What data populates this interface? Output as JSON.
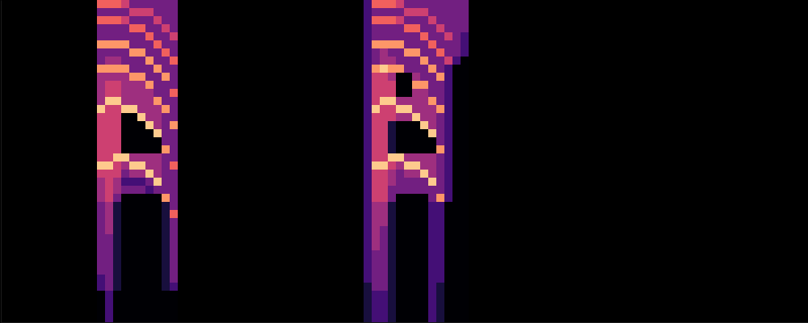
{
  "chart_data": {
    "type": "heatmap",
    "x": [
      12,
      13,
      14,
      15,
      16,
      17,
      18,
      19,
      20,
      21,
      45,
      46,
      47,
      48,
      49,
      50,
      51,
      52,
      53,
      54,
      55,
      56,
      57
    ],
    "y": [
      39,
      38,
      37,
      36,
      35,
      34,
      33,
      32,
      31,
      30,
      29,
      28,
      27,
      26,
      25,
      24,
      23,
      22,
      21,
      20,
      19,
      18,
      17,
      16,
      15,
      14,
      13,
      12,
      11,
      10,
      9,
      8,
      7,
      6,
      5,
      4,
      3,
      2,
      1,
      0
    ],
    "z": [
      [
        6,
        3,
        6,
        3,
        3,
        7,
        3,
        3,
        7,
        4,
        4,
        4,
        4,
        8,
        5,
        5,
        5,
        5,
        5,
        5,
        8,
        5,
        4,
        4,
        4,
        3,
        3,
        3,
        3,
        3,
        3,
        3,
        3,
        3,
        2,
        2,
        0,
        0,
        0,
        0
      ],
      [
        6,
        3,
        6,
        3,
        3,
        7,
        3,
        4,
        7,
        4,
        5,
        5,
        8,
        5,
        5,
        5,
        5,
        5,
        5,
        5,
        8,
        5,
        5,
        5,
        5,
        4,
        4,
        4,
        4,
        3,
        3,
        3,
        3,
        3,
        3,
        3,
        2,
        2,
        2,
        2
      ],
      [
        6,
        3,
        6,
        3,
        3,
        7,
        3,
        4,
        7,
        4,
        5,
        5,
        8,
        5,
        5,
        5,
        5,
        5,
        5,
        8,
        5,
        5,
        4,
        4,
        3,
        1,
        1,
        1,
        1,
        1,
        1,
        1,
        1,
        1,
        1,
        1,
        0,
        0,
        0,
        0
      ],
      [
        5,
        3,
        5,
        3,
        3,
        7,
        3,
        3,
        7,
        4,
        4,
        4,
        4,
        8,
        0,
        0,
        0,
        0,
        0,
        8,
        4,
        3,
        2,
        3,
        0,
        0,
        0,
        0,
        0,
        0,
        0,
        0,
        0,
        0,
        0,
        0,
        0,
        0,
        0,
        0
      ],
      [
        3,
        5,
        3,
        6,
        3,
        3,
        7,
        3,
        3,
        7,
        4,
        4,
        4,
        8,
        0,
        0,
        0,
        0,
        0,
        4,
        8,
        4,
        2,
        3,
        0,
        0,
        0,
        0,
        0,
        0,
        0,
        0,
        0,
        0,
        0,
        0,
        0,
        0,
        0,
        0
      ],
      [
        3,
        5,
        3,
        6,
        3,
        3,
        7,
        3,
        3,
        7,
        4,
        4,
        4,
        4,
        8,
        0,
        0,
        0,
        0,
        4,
        8,
        4,
        2,
        3,
        0,
        0,
        0,
        0,
        0,
        0,
        0,
        0,
        0,
        0,
        0,
        0,
        0,
        0,
        0,
        0
      ],
      [
        3,
        5,
        3,
        3,
        6,
        3,
        3,
        7,
        3,
        3,
        7,
        4,
        4,
        4,
        4,
        8,
        0,
        0,
        0,
        4,
        4,
        8,
        3,
        2,
        0,
        0,
        0,
        0,
        0,
        0,
        0,
        0,
        0,
        0,
        0,
        0,
        0,
        0,
        0,
        0
      ],
      [
        3,
        3,
        5,
        3,
        3,
        6,
        3,
        3,
        7,
        3,
        3,
        3,
        7,
        4,
        4,
        4,
        8,
        0,
        0,
        4,
        4,
        4,
        8,
        3,
        0,
        0,
        0,
        0,
        0,
        0,
        0,
        0,
        0,
        0,
        0,
        0,
        0,
        0,
        0,
        0
      ],
      [
        3,
        3,
        3,
        5,
        3,
        3,
        6,
        3,
        3,
        7,
        3,
        3,
        3,
        7,
        3,
        3,
        3,
        3,
        7,
        3,
        3,
        3,
        3,
        3,
        7,
        1,
        1,
        1,
        1,
        1,
        1,
        1,
        1,
        1,
        1,
        1,
        0,
        0,
        0,
        0
      ],
      [
        3,
        3,
        3,
        3,
        5,
        3,
        3,
        6,
        3,
        3,
        3,
        6,
        3,
        3,
        3,
        7,
        3,
        3,
        3,
        3,
        6,
        3,
        3,
        3,
        3,
        3,
        6,
        3,
        3,
        3,
        3,
        3,
        3,
        3,
        3,
        2,
        0,
        0,
        0,
        0
      ],
      [
        2,
        2,
        2,
        2,
        2,
        2,
        2,
        2,
        2,
        2,
        2,
        2,
        2,
        2,
        2,
        2,
        2,
        2,
        2,
        2,
        2,
        2,
        2,
        2,
        2,
        2,
        2,
        2,
        2,
        2,
        2,
        2,
        2,
        2,
        2,
        1,
        1,
        1,
        1,
        1
      ],
      [
        6,
        3,
        6,
        3,
        3,
        7,
        3,
        3,
        7,
        5,
        5,
        5,
        5,
        8,
        5,
        5,
        5,
        5,
        5,
        5,
        8,
        5,
        5,
        5,
        5,
        4,
        4,
        4,
        4,
        4,
        4,
        3,
        3,
        3,
        3,
        3,
        2,
        2,
        2,
        2
      ],
      [
        6,
        3,
        6,
        3,
        3,
        7,
        4,
        4,
        8,
        5,
        5,
        5,
        8,
        5,
        5,
        5,
        5,
        5,
        5,
        5,
        8,
        5,
        5,
        5,
        5,
        4,
        4,
        4,
        3,
        3,
        3,
        3,
        3,
        3,
        3,
        3,
        2,
        2,
        2,
        2
      ],
      [
        6,
        3,
        6,
        3,
        3,
        7,
        3,
        4,
        7,
        4,
        5,
        5,
        8,
        5,
        5,
        1,
        1,
        1,
        1,
        8,
        5,
        4,
        4,
        3,
        3,
        1,
        1,
        1,
        1,
        1,
        1,
        1,
        1,
        1,
        1,
        1,
        1,
        1,
        1,
        1
      ],
      [
        5,
        3,
        5,
        3,
        3,
        7,
        3,
        3,
        7,
        0,
        0,
        0,
        4,
        8,
        4,
        0,
        0,
        0,
        0,
        8,
        4,
        3,
        3,
        3,
        0,
        0,
        0,
        0,
        0,
        0,
        0,
        0,
        0,
        0,
        0,
        0,
        0,
        0,
        0,
        0
      ],
      [
        3,
        5,
        3,
        6,
        3,
        3,
        7,
        3,
        3,
        0,
        0,
        0,
        4,
        8,
        4,
        0,
        0,
        0,
        0,
        4,
        8,
        4,
        3,
        3,
        0,
        0,
        0,
        0,
        0,
        0,
        0,
        0,
        0,
        0,
        0,
        0,
        0,
        0,
        0,
        0
      ],
      [
        3,
        5,
        3,
        6,
        3,
        3,
        7,
        3,
        3,
        4,
        7,
        4,
        4,
        4,
        8,
        0,
        0,
        0,
        0,
        4,
        8,
        4,
        3,
        3,
        0,
        0,
        0,
        0,
        0,
        0,
        0,
        0,
        0,
        0,
        0,
        0,
        0,
        0,
        0,
        0
      ],
      [
        3,
        5,
        3,
        3,
        6,
        3,
        3,
        7,
        3,
        3,
        7,
        4,
        4,
        4,
        4,
        8,
        0,
        0,
        0,
        4,
        4,
        8,
        3,
        3,
        0,
        0,
        0,
        0,
        0,
        0,
        0,
        0,
        0,
        0,
        0,
        0,
        0,
        0,
        0,
        0
      ],
      [
        3,
        3,
        5,
        3,
        3,
        6,
        3,
        3,
        7,
        3,
        3,
        3,
        7,
        4,
        4,
        4,
        8,
        0,
        0,
        4,
        4,
        4,
        8,
        3,
        3,
        2,
        2,
        2,
        2,
        2,
        2,
        2,
        2,
        2,
        2,
        2,
        2,
        2,
        2,
        2
      ],
      [
        3,
        3,
        3,
        5,
        3,
        3,
        6,
        3,
        3,
        7,
        3,
        3,
        3,
        7,
        3,
        3,
        3,
        3,
        7,
        3,
        3,
        3,
        3,
        3,
        7,
        2,
        2,
        2,
        2,
        2,
        2,
        2,
        2,
        2,
        2,
        1,
        1,
        1,
        1,
        1
      ],
      [
        3,
        3,
        3,
        3,
        5,
        3,
        3,
        5,
        2,
        2,
        2,
        2,
        2,
        2,
        2,
        2,
        2,
        2,
        2,
        2,
        2,
        2,
        2,
        2,
        2,
        0,
        0,
        0,
        0,
        0,
        0,
        0,
        0,
        0,
        0,
        0,
        0,
        0,
        0,
        0
      ],
      [
        3,
        3,
        3,
        3,
        3,
        3,
        3,
        2,
        0,
        0,
        0,
        0,
        0,
        0,
        0,
        0,
        0,
        0,
        0,
        0,
        0,
        0,
        0,
        0,
        0,
        0,
        0,
        0,
        0,
        0,
        0,
        0,
        0,
        0,
        0,
        0,
        0,
        0,
        0,
        0
      ],
      [
        3,
        3,
        3,
        3,
        2,
        2,
        2,
        0,
        0,
        0,
        0,
        0,
        0,
        0,
        0,
        0,
        0,
        0,
        0,
        0,
        0,
        0,
        0,
        0,
        0,
        0,
        0,
        0,
        0,
        0,
        0,
        0,
        0,
        0,
        0,
        0,
        0,
        0,
        0,
        0
      ]
    ],
    "xlim": [
      0,
      100
    ],
    "ylim": [
      0,
      40
    ],
    "zlim": [
      0,
      9
    ],
    "tick_labels": false
  }
}
